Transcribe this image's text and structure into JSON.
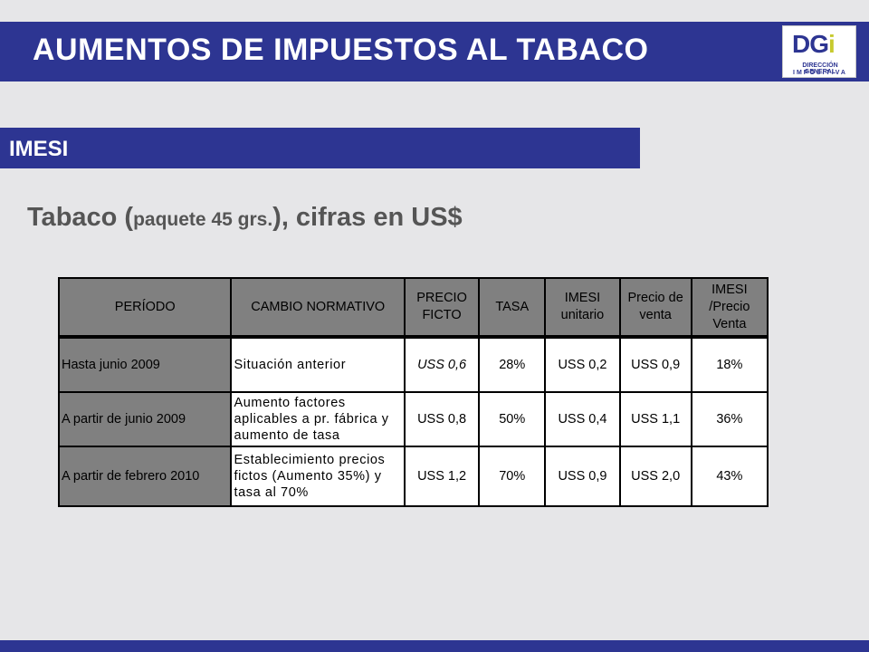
{
  "header": {
    "title": "AUMENTOS DE IMPUESTOS AL TABACO",
    "logo": {
      "mark_main": "DG",
      "mark_accent": "i",
      "line1": "DIRECCIÓN GENERAL",
      "line2": "IMPOSITIVA"
    }
  },
  "section": {
    "label": "IMESI"
  },
  "subtitle": {
    "part1": "Tabaco (",
    "part2": "paquete 45 grs.",
    "part3": "), cifras en US$"
  },
  "table": {
    "headers": [
      "PERÍODO",
      "CAMBIO NORMATIVO",
      "PRECIO FICTO",
      "TASA",
      "IMESI unitario",
      "Precio de venta",
      "IMESI /Precio Venta"
    ],
    "rows": [
      [
        "Hasta junio 2009",
        "Situación anterior",
        "USS 0,6",
        "28%",
        "USS 0,2",
        "USS 0,9",
        "18%"
      ],
      [
        "A partir de junio 2009",
        "Aumento factores aplicables a pr. fábrica y aumento de tasa",
        "USS 0,8",
        "50%",
        "USS 0,4",
        "USS 1,1",
        "36%"
      ],
      [
        "A partir de febrero 2010",
        "Establecimiento precios fictos (Aumento 35%) y tasa al 70%",
        "USS 1,2",
        "70%",
        "USS 0,9",
        "USS 2,0",
        "43%"
      ]
    ]
  },
  "colors": {
    "brand_blue": "#2d3592",
    "header_gray": "#808080",
    "background": "#e6e6e8"
  }
}
